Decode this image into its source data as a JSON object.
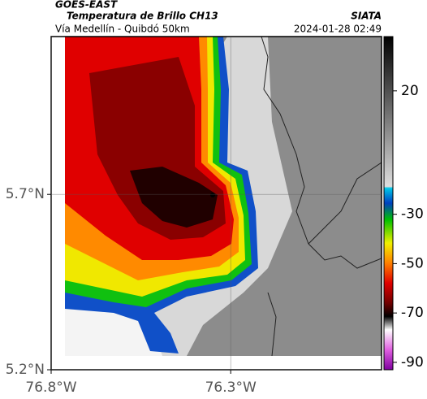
{
  "header": {
    "source": "GOES-EAST",
    "title": "Temperatura de Brillo CH13",
    "agency": "SIATA",
    "region": "Vía Medellín - Quibdó 50km",
    "timestamp": "2024-01-28 02:49"
  },
  "map": {
    "xlim": [
      -76.8,
      -75.88
    ],
    "ylim": [
      5.2,
      6.15
    ],
    "xticks": [
      {
        "value": -76.8,
        "label": "76.8°W"
      },
      {
        "value": -76.3,
        "label": "76.3°W"
      }
    ],
    "yticks": [
      {
        "value": 5.2,
        "label": "5.2°N"
      },
      {
        "value": 5.7,
        "label": "5.7°N"
      }
    ],
    "grid": true
  },
  "colorbar": {
    "lim": [
      -93,
      42
    ],
    "ticks": [
      20,
      -30,
      -50,
      -70,
      -90
    ]
  }
}
